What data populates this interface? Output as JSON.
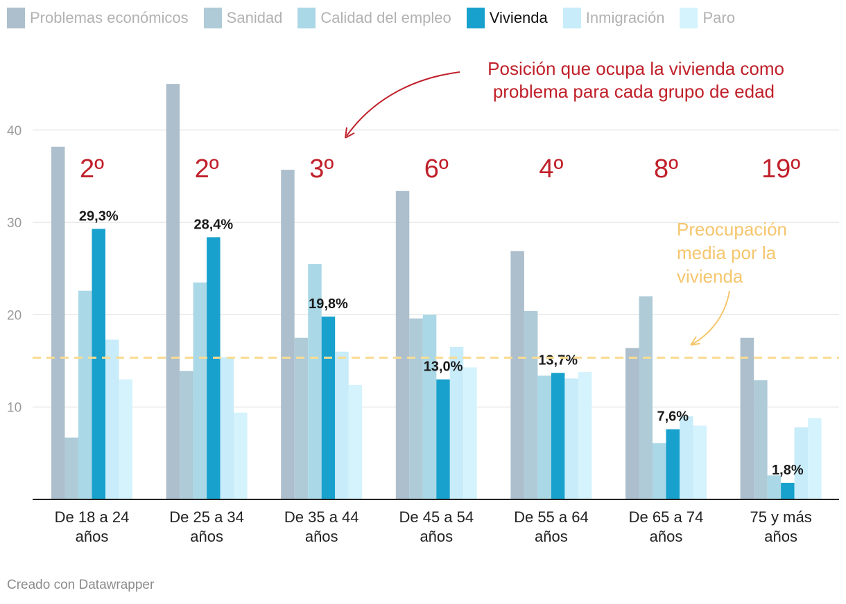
{
  "footer": "Creado con Datawrapper",
  "chart_data": {
    "type": "bar",
    "title": "",
    "xlabel": "",
    "ylabel": "",
    "ylim": [
      0,
      45
    ],
    "yticks": [
      10,
      20,
      30,
      40
    ],
    "grid": true,
    "legend_position": "top-left",
    "highlight_series": "Vivienda",
    "categories": [
      [
        "De 18 a 24",
        "años"
      ],
      [
        "De 25 a 34",
        "años"
      ],
      [
        "De 35 a 44",
        "años"
      ],
      [
        "De 45 a 54",
        "años"
      ],
      [
        "De 55 a 64",
        "años"
      ],
      [
        "De 65 a 74",
        "años"
      ],
      [
        "75 y más",
        "años"
      ]
    ],
    "series": [
      {
        "name": "Problemas económicos",
        "color": "#adbfcc",
        "values": [
          38.2,
          45.0,
          35.7,
          33.4,
          26.9,
          16.4,
          17.5
        ]
      },
      {
        "name": "Sanidad",
        "color": "#aecbd7",
        "values": [
          6.7,
          13.9,
          17.5,
          19.6,
          20.4,
          22.0,
          12.9
        ]
      },
      {
        "name": "Calidad del empleo",
        "color": "#abd8e6",
        "values": [
          22.6,
          23.5,
          25.5,
          20.0,
          13.4,
          6.1,
          2.6
        ]
      },
      {
        "name": "Vivienda",
        "color": "#18a1cd",
        "values": [
          29.3,
          28.4,
          19.8,
          13.0,
          13.7,
          7.6,
          1.8
        ]
      },
      {
        "name": "Inmigración",
        "color": "#c8ecf9",
        "values": [
          17.3,
          15.4,
          16.0,
          16.5,
          13.1,
          9.0,
          7.8
        ]
      },
      {
        "name": "Paro",
        "color": "#d5f3fc",
        "values": [
          13.0,
          9.4,
          12.4,
          14.3,
          13.8,
          8.0,
          8.8
        ]
      }
    ],
    "value_labels": [
      "29,3%",
      "28,4%",
      "19,8%",
      "13,0%",
      "13,7%",
      "7,6%",
      "1,8%"
    ],
    "ranks": [
      "2º",
      "2º",
      "3º",
      "6º",
      "4º",
      "8º",
      "19º"
    ],
    "reference_line": {
      "value": 15.35,
      "color": "#f9dc91"
    },
    "annotations": {
      "rank_note": [
        "Posición que ocupa la vivienda como",
        "problema para cada grupo de edad"
      ],
      "mean_note": [
        "Preocupación",
        "media por la",
        "vivienda"
      ]
    }
  }
}
